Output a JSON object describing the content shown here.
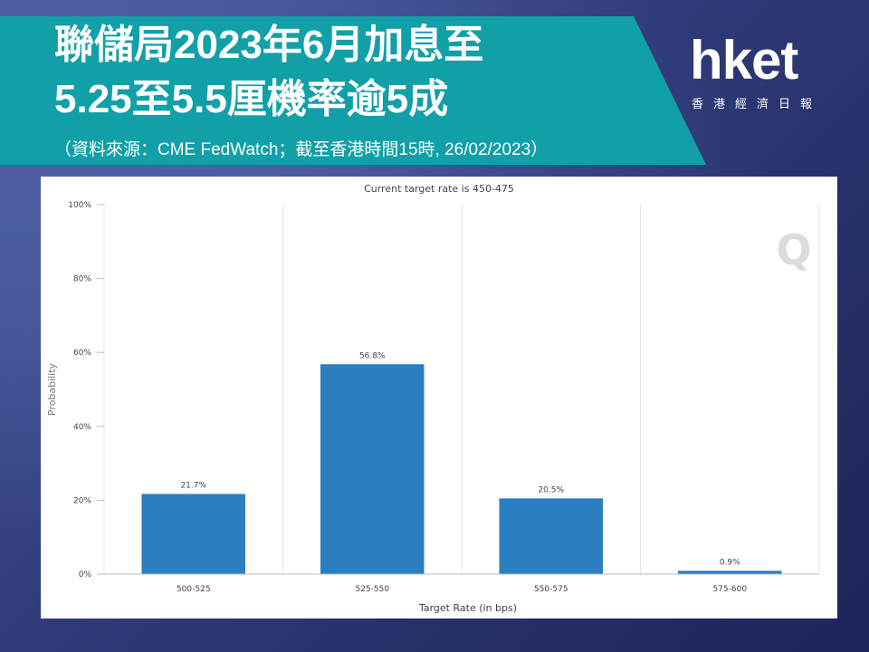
{
  "header": {
    "title_line1": "聯儲局2023年6月加息至",
    "title_line2": "5.25至5.5厘機率逾5成",
    "subtitle": "（資料來源：CME FedWatch；截至香港時間15時, 26/02/2023）"
  },
  "logo": {
    "main": "hket",
    "sub": "香港經濟日報"
  },
  "chart_data": {
    "type": "bar",
    "title": "Current target rate is 450-475",
    "xlabel": "Target Rate (in bps)",
    "ylabel": "Probability",
    "categories": [
      "500-525",
      "525-550",
      "550-575",
      "575-600"
    ],
    "values": [
      21.7,
      56.8,
      20.5,
      0.9
    ],
    "data_labels": [
      "21.7%",
      "56.8%",
      "20.5%",
      "0.9%"
    ],
    "y_ticks": [
      0,
      20,
      40,
      60,
      80,
      100
    ],
    "y_tick_labels": [
      "0%",
      "20%",
      "40%",
      "60%",
      "80%",
      "100%"
    ],
    "ylim": [
      0,
      100
    ],
    "grid": "vertical",
    "bar_color": "#2b7fc0",
    "watermark": "Q"
  }
}
